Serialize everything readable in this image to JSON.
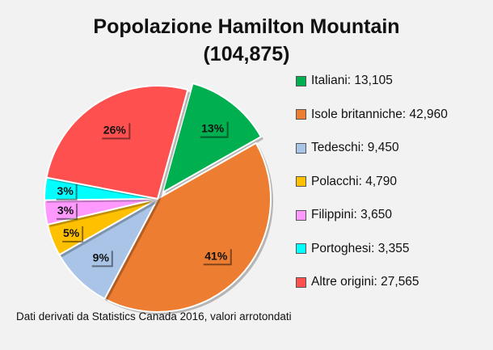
{
  "chart_data": {
    "type": "pie",
    "title": "Popolazione Hamilton Mountain",
    "subtitle": "(104,875)",
    "slices": [
      {
        "name": "Italiani",
        "value": 13105,
        "label": "13%",
        "legend": "Italiani: 13,105",
        "color": "#00b050",
        "exploded": true
      },
      {
        "name": "Isole britanniche",
        "value": 42960,
        "label": "41%",
        "legend": "Isole britanniche: 42,960",
        "color": "#ed7d31",
        "exploded": false
      },
      {
        "name": "Tedeschi",
        "value": 9450,
        "label": "9%",
        "legend": "Tedeschi: 9,450",
        "color": "#a9c4e6",
        "exploded": false
      },
      {
        "name": "Polacchi",
        "value": 4790,
        "label": "5%",
        "legend": "Polacchi: 4,790",
        "color": "#ffc000",
        "exploded": false
      },
      {
        "name": "Filippini",
        "value": 3650,
        "label": "3%",
        "legend": "Filippini: 3,650",
        "color": "#ff99ff",
        "exploded": false
      },
      {
        "name": "Portoghesi",
        "value": 3355,
        "label": "3%",
        "legend": "Portoghesi: 3,355",
        "color": "#00ffff",
        "exploded": false
      },
      {
        "name": "Altre origini",
        "value": 27565,
        "label": "26%",
        "legend": "Altre origini: 27,565",
        "color": "#ff5050",
        "exploded": false
      }
    ],
    "legend_position": "right"
  },
  "footnote": "Dati derivati da Statistics Canada 2016, valori arrotondati"
}
